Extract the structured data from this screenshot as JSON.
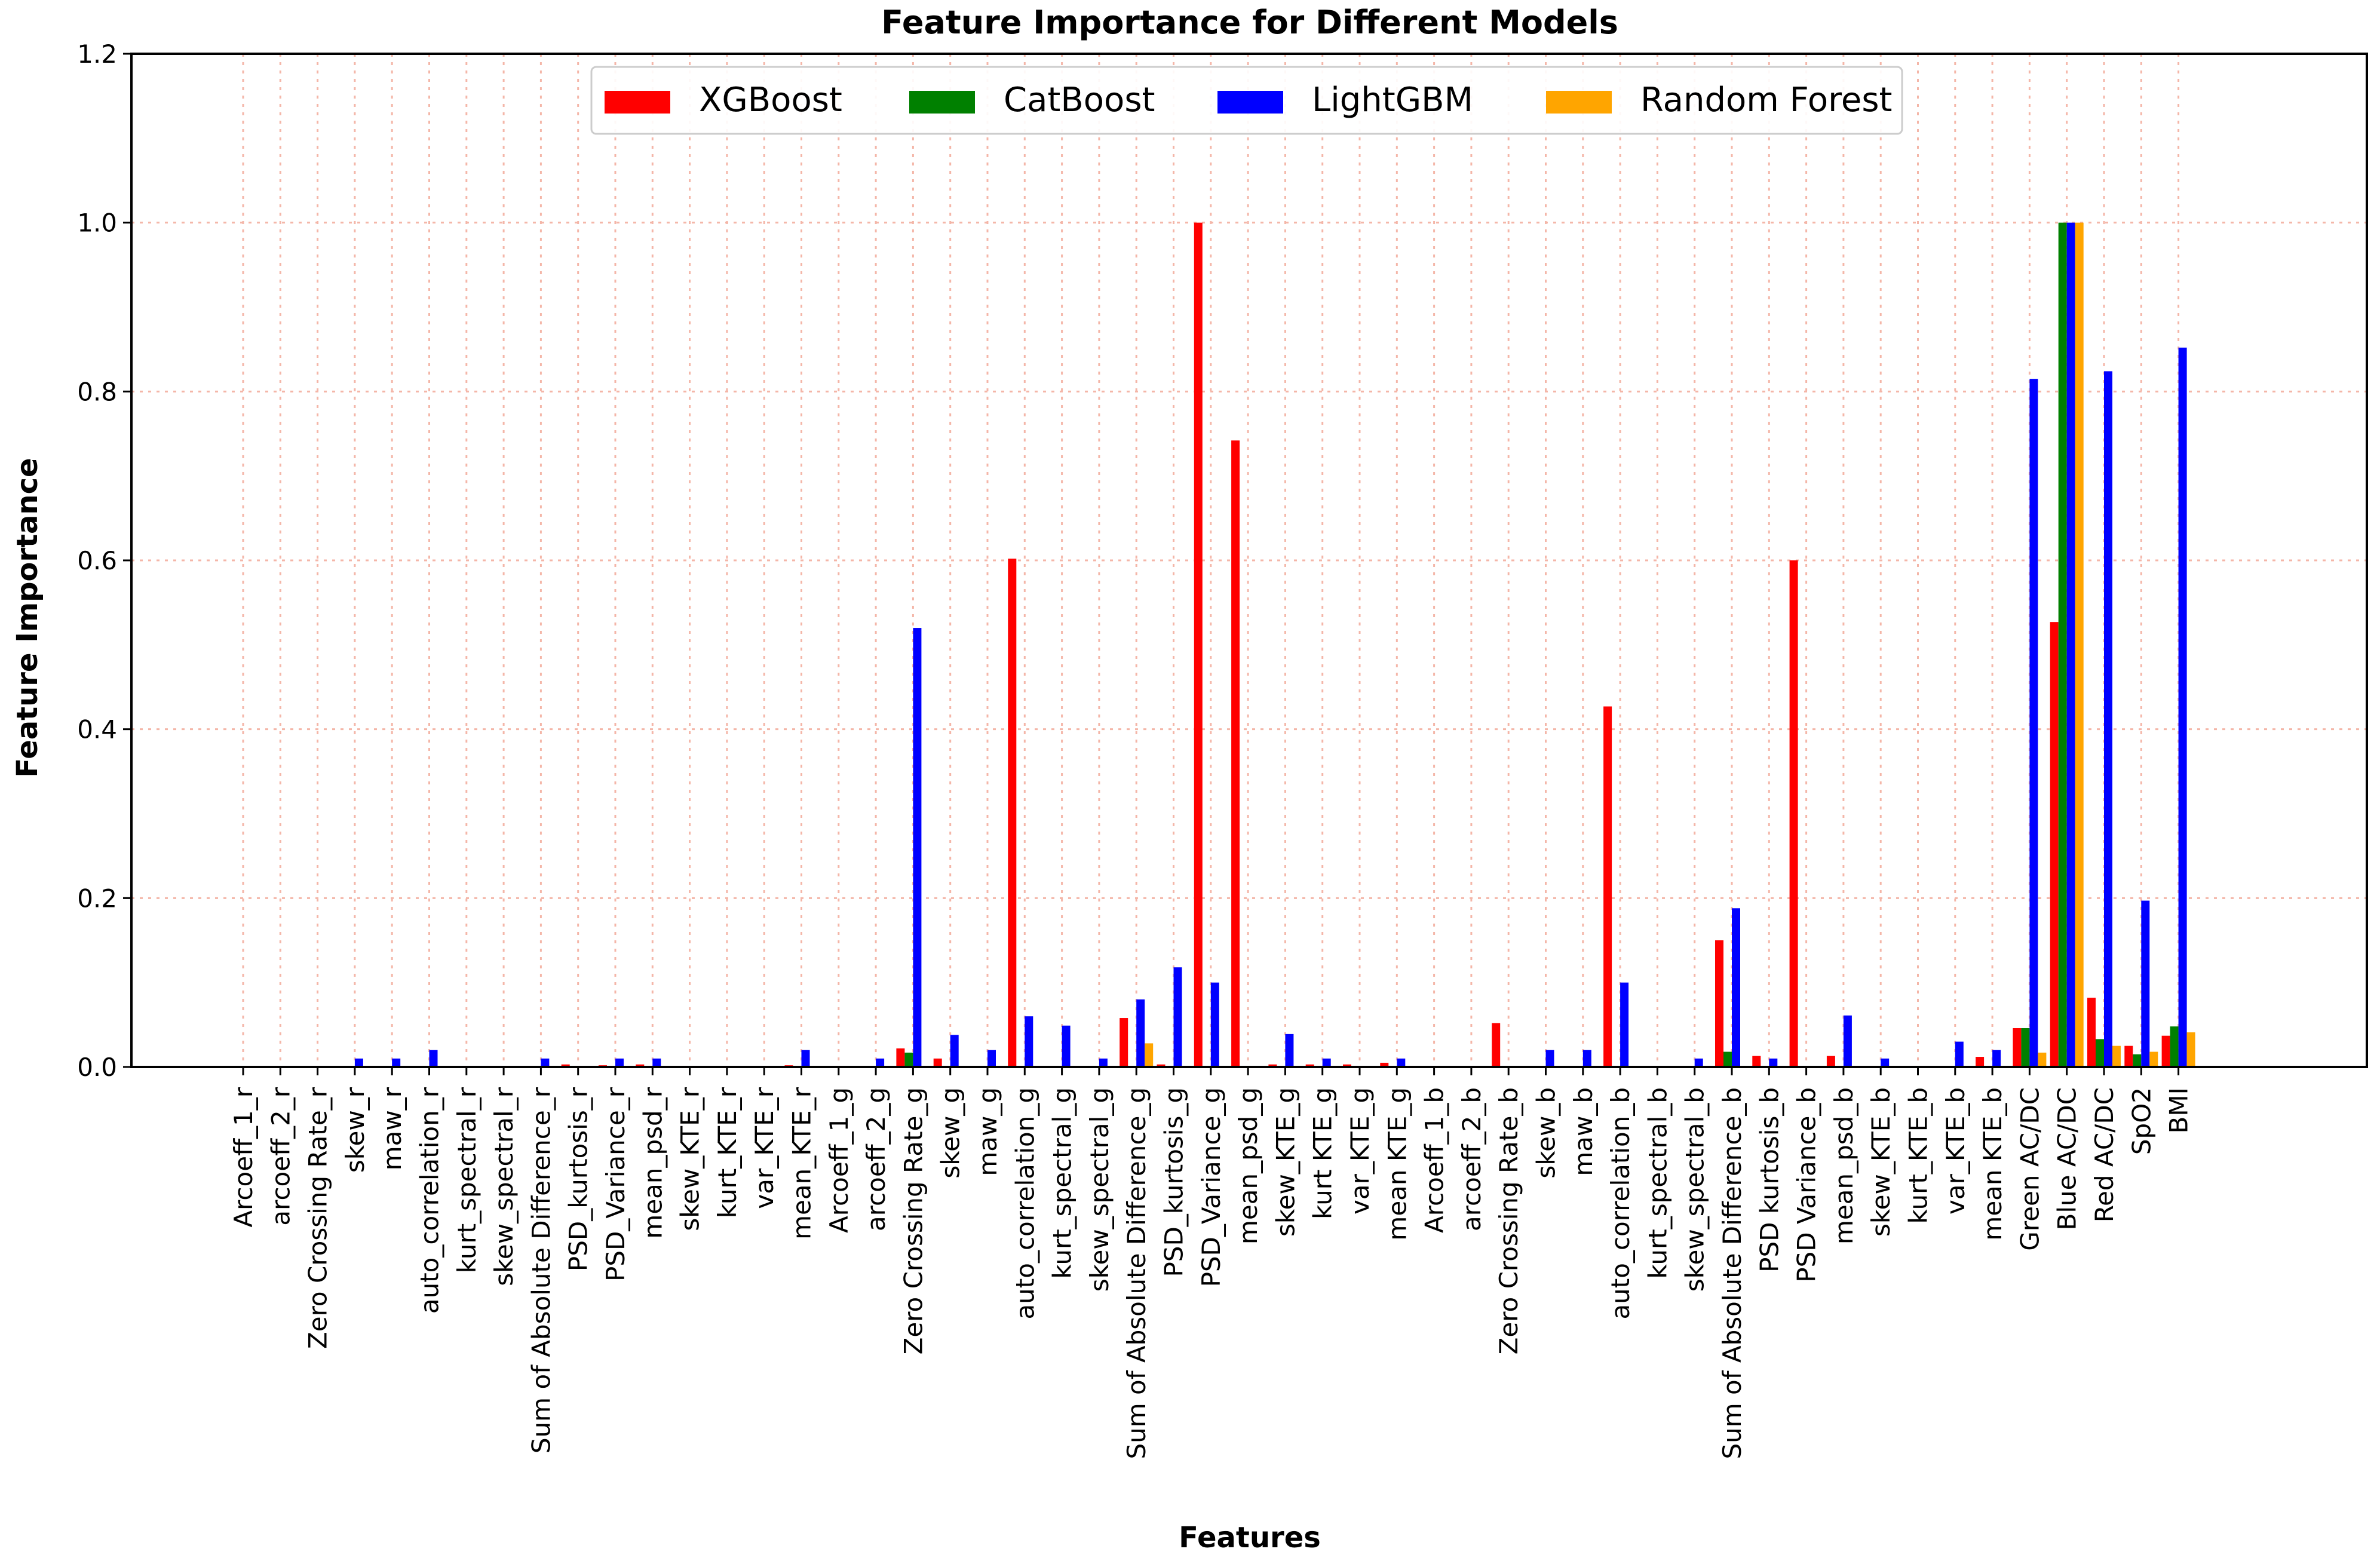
{
  "chart_data": {
    "type": "bar",
    "title": "Feature Importance for Different Models",
    "xlabel": "Features",
    "ylabel": "Feature Importance",
    "ylim": [
      0,
      1.2
    ],
    "yticks": [
      "0.0",
      "0.2",
      "0.4",
      "0.6",
      "0.8",
      "1.0",
      "1.2"
    ],
    "grid": true,
    "legend_position": "top-center",
    "categories": [
      "Arcoeff_1_r",
      "arcoeff_2_r",
      "Zero Crossing Rate_r",
      "skew_r",
      "maw_r",
      "auto_correlation_r",
      "kurt_spectral_r",
      "skew_spectral_r",
      "Sum of Absolute Difference_r",
      "PSD_kurtosis_r",
      "PSD_Variance_r",
      "mean_psd_r",
      "skew_KTE_r",
      "kurt_KTE_r",
      "var_KTE_r",
      "mean_KTE_r",
      "Arcoeff_1_g",
      "arcoeff_2_g",
      "Zero Crossing Rate_g",
      "skew_g",
      "maw_g",
      "auto_correlation_g",
      "kurt_spectral_g",
      "skew_spectral_g",
      "Sum of Absolute Difference_g",
      "PSD_kurtosis_g",
      "PSD_Variance_g",
      "mean_psd_g",
      "skew_KTE_g",
      "kurt KTE_g",
      "var_KTE_g",
      "mean KTE_g",
      "Arcoeff_1_b",
      "arcoeff_2_b",
      "Zero Crossing Rate_b",
      "skew_b",
      "maw_b",
      "auto_correlation_b",
      "kurt_spectral_b",
      "skew_spectral_b",
      "Sum of Absolute Difference_b",
      "PSD kurtosis_b",
      "PSD Variance_b",
      "mean_psd_b",
      "skew_KTE_b",
      "kurt_KTE_b",
      "var_KTE_b",
      "mean KTE_b",
      "Green AC/DC",
      "Blue AC/DC",
      "Red AC/DC",
      "SpO2",
      "BMI"
    ],
    "series": [
      {
        "name": "XGBoost",
        "color": "#ff0000",
        "values": [
          0,
          0,
          0,
          0,
          0,
          0,
          0,
          0,
          0,
          0.003,
          0.002,
          0.003,
          0,
          0,
          0,
          0.002,
          0,
          0,
          0.022,
          0.01,
          0,
          0.602,
          0,
          0,
          0.058,
          0.003,
          1.0,
          0.742,
          0.003,
          0.003,
          0.003,
          0.005,
          0,
          0,
          0.052,
          0,
          0,
          0.427,
          0,
          0,
          0.15,
          0.013,
          0.6,
          0.013,
          0,
          0,
          0,
          0.012,
          0.046,
          0.527,
          0.082,
          0.025,
          0.037
        ]
      },
      {
        "name": "CatBoost",
        "color": "#008000",
        "values": [
          0,
          0,
          0,
          0,
          0,
          0,
          0,
          0,
          0,
          0,
          0,
          0,
          0,
          0,
          0,
          0,
          0,
          0,
          0.017,
          0,
          0,
          0,
          0,
          0,
          0,
          0,
          0,
          0,
          0,
          0,
          0,
          0,
          0,
          0,
          0,
          0,
          0,
          0,
          0,
          0,
          0.018,
          0,
          0,
          0,
          0,
          0,
          0,
          0,
          0.046,
          1.0,
          0.033,
          0.015,
          0.048
        ]
      },
      {
        "name": "LightGBM",
        "color": "#0000ff",
        "values": [
          0,
          0,
          0,
          0.01,
          0.01,
          0.02,
          0,
          0,
          0.01,
          0,
          0.01,
          0.01,
          0,
          0,
          0,
          0.02,
          0,
          0.01,
          0.52,
          0.038,
          0.02,
          0.06,
          0.049,
          0.01,
          0.08,
          0.118,
          0.1,
          0,
          0.039,
          0.01,
          0,
          0.01,
          0,
          0,
          0,
          0.02,
          0.02,
          0.1,
          0,
          0.01,
          0.188,
          0.01,
          0,
          0.061,
          0.01,
          0,
          0.03,
          0.02,
          0.815,
          1.0,
          0.824,
          0.197,
          0.852
        ]
      },
      {
        "name": "Random Forest",
        "color": "#ffa500",
        "values": [
          0,
          0,
          0,
          0,
          0,
          0,
          0,
          0,
          0,
          0,
          0,
          0,
          0,
          0,
          0,
          0,
          0,
          0,
          0,
          0,
          0,
          0,
          0,
          0,
          0.028,
          0,
          0,
          0,
          0,
          0,
          0,
          0,
          0,
          0,
          0,
          0,
          0,
          0,
          0,
          0,
          0,
          0,
          0,
          0,
          0,
          0,
          0,
          0,
          0.017,
          1.0,
          0.025,
          0.018,
          0.041
        ]
      }
    ]
  }
}
